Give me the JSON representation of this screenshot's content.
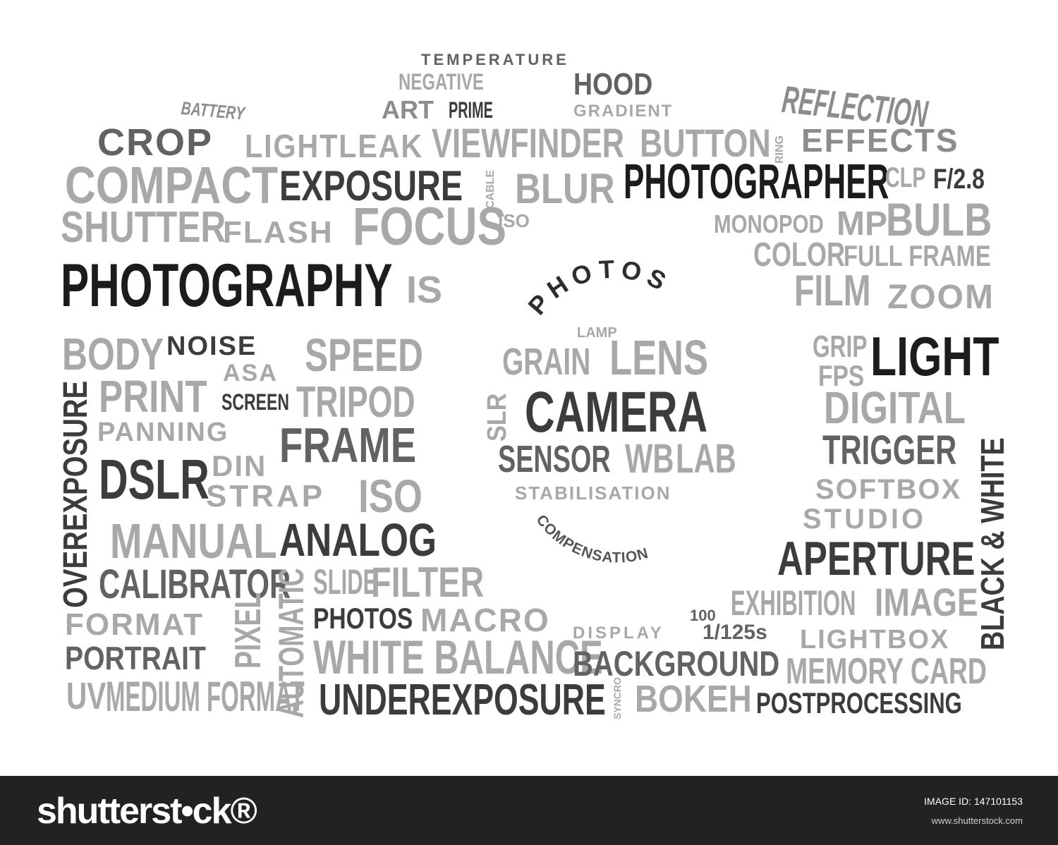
{
  "words": [
    {
      "text": "TEMPERATURE",
      "tone": "c3"
    },
    {
      "text": "NEGATIVE",
      "tone": "c5"
    },
    {
      "text": "HOOD",
      "tone": "c3"
    },
    {
      "text": "BATTERY",
      "tone": "c4"
    },
    {
      "text": "ART",
      "tone": "c4"
    },
    {
      "text": "PRIME",
      "tone": "c2"
    },
    {
      "text": "GRADIENT",
      "tone": "c5"
    },
    {
      "text": "REFLECTION",
      "tone": "c4"
    },
    {
      "text": "CROP",
      "tone": "c3"
    },
    {
      "text": "LIGHTLEAK",
      "tone": "c5"
    },
    {
      "text": "VIEWFINDER",
      "tone": "c5"
    },
    {
      "text": "BUTTON",
      "tone": "c5"
    },
    {
      "text": "RING",
      "tone": "c5"
    },
    {
      "text": "EFFECTS",
      "tone": "c4"
    },
    {
      "text": "COMPACT",
      "tone": "c5"
    },
    {
      "text": "EXPOSURE",
      "tone": "c2"
    },
    {
      "text": "CABLE",
      "tone": "c5"
    },
    {
      "text": "BLUR",
      "tone": "c5"
    },
    {
      "text": "PHOTOGRAPHER",
      "tone": "c1"
    },
    {
      "text": "CLP",
      "tone": "c5"
    },
    {
      "text": "F/2.8",
      "tone": "c2"
    },
    {
      "text": "SHUTTER",
      "tone": "c5"
    },
    {
      "text": "FLASH",
      "tone": "c5"
    },
    {
      "text": "FOCUS",
      "tone": "c5"
    },
    {
      "text": "ISO",
      "tone": "c5"
    },
    {
      "text": "MONOPOD",
      "tone": "c5"
    },
    {
      "text": "MP",
      "tone": "c5"
    },
    {
      "text": "BULB",
      "tone": "c5"
    },
    {
      "text": "COLOR",
      "tone": "c5"
    },
    {
      "text": "FULL FRAME",
      "tone": "c5"
    },
    {
      "text": "PHOTOGRAPHY",
      "tone": "c1"
    },
    {
      "text": "IS",
      "tone": "c5"
    },
    {
      "text": "FILM",
      "tone": "c5"
    },
    {
      "text": "ZOOM",
      "tone": "c5"
    },
    {
      "text": "BODY",
      "tone": "c5"
    },
    {
      "text": "NOISE",
      "tone": "c2"
    },
    {
      "text": "SPEED",
      "tone": "c5"
    },
    {
      "text": "ASA",
      "tone": "c5"
    },
    {
      "text": "PRINT",
      "tone": "c5"
    },
    {
      "text": "SCREEN",
      "tone": "c2"
    },
    {
      "text": "TRIPOD",
      "tone": "c5"
    },
    {
      "text": "PANNING",
      "tone": "c5"
    },
    {
      "text": "FRAME",
      "tone": "c3"
    },
    {
      "text": "OVEREXPOSURE",
      "tone": "c2"
    },
    {
      "text": "DSLR",
      "tone": "c2"
    },
    {
      "text": "DIN",
      "tone": "c5"
    },
    {
      "text": "STRAP",
      "tone": "c5"
    },
    {
      "text": "ISO",
      "tone": "c5"
    },
    {
      "text": "MANUAL",
      "tone": "c5"
    },
    {
      "text": "ANALOG",
      "tone": "c2"
    },
    {
      "text": "CALIBRATOR",
      "tone": "c3"
    },
    {
      "text": "AUTOMATIC",
      "tone": "c5"
    },
    {
      "text": "SLIDE",
      "tone": "c5"
    },
    {
      "text": "FILTER",
      "tone": "c5"
    },
    {
      "text": "FORMAT",
      "tone": "c5"
    },
    {
      "text": "PIXEL",
      "tone": "c5"
    },
    {
      "text": "PHOTOS",
      "tone": "c2"
    },
    {
      "text": "MACRO",
      "tone": "c5"
    },
    {
      "text": "PORTRAIT",
      "tone": "c3"
    },
    {
      "text": "WHITE BALANCE",
      "tone": "c5"
    },
    {
      "text": "UV",
      "tone": "c5"
    },
    {
      "text": "MEDIUM FORMAT",
      "tone": "c5"
    },
    {
      "text": "UNDEREXPOSURE",
      "tone": "c2"
    },
    {
      "text": "GRIP",
      "tone": "c5"
    },
    {
      "text": "FPS",
      "tone": "c5"
    },
    {
      "text": "LIGHT",
      "tone": "c1"
    },
    {
      "text": "DIGITAL",
      "tone": "c5"
    },
    {
      "text": "TRIGGER",
      "tone": "c3"
    },
    {
      "text": "BLACK & WHITE",
      "tone": "c2"
    },
    {
      "text": "SOFTBOX",
      "tone": "c5"
    },
    {
      "text": "STUDIO",
      "tone": "c5"
    },
    {
      "text": "APERTURE",
      "tone": "c2"
    },
    {
      "text": "EXHIBITION",
      "tone": "c5"
    },
    {
      "text": "IMAGE",
      "tone": "c5"
    },
    {
      "text": "100",
      "tone": "c3"
    },
    {
      "text": "DISPLAY",
      "tone": "c5"
    },
    {
      "text": "1/125s",
      "tone": "c3"
    },
    {
      "text": "LIGHTBOX",
      "tone": "c5"
    },
    {
      "text": "BACKGROUND",
      "tone": "c3"
    },
    {
      "text": "MEMORY CARD",
      "tone": "c5"
    },
    {
      "text": "SYNCRO",
      "tone": "c5"
    },
    {
      "text": "BOKEH",
      "tone": "c5"
    },
    {
      "text": "POSTPROCESSING",
      "tone": "c2"
    },
    {
      "text": "LAMP",
      "tone": "c5"
    },
    {
      "text": "GRAIN",
      "tone": "c5"
    },
    {
      "text": "LENS",
      "tone": "c5"
    },
    {
      "text": "SLR",
      "tone": "c5"
    },
    {
      "text": "CAMERA",
      "tone": "c2"
    },
    {
      "text": "SENSOR",
      "tone": "c3"
    },
    {
      "text": "WB",
      "tone": "c5"
    },
    {
      "text": "LAB",
      "tone": "c5"
    },
    {
      "text": "STABILISATION",
      "tone": "c5"
    }
  ],
  "lens_arc": {
    "top": "PHOTOS",
    "bottom": "COMPENSATION"
  },
  "footer": {
    "logo": "shutterst•ck®",
    "image_id": "IMAGE ID: 147101153",
    "site": "www.shutterstock.com"
  },
  "colors": {
    "background": "#ffffff",
    "footer": "#222222"
  }
}
